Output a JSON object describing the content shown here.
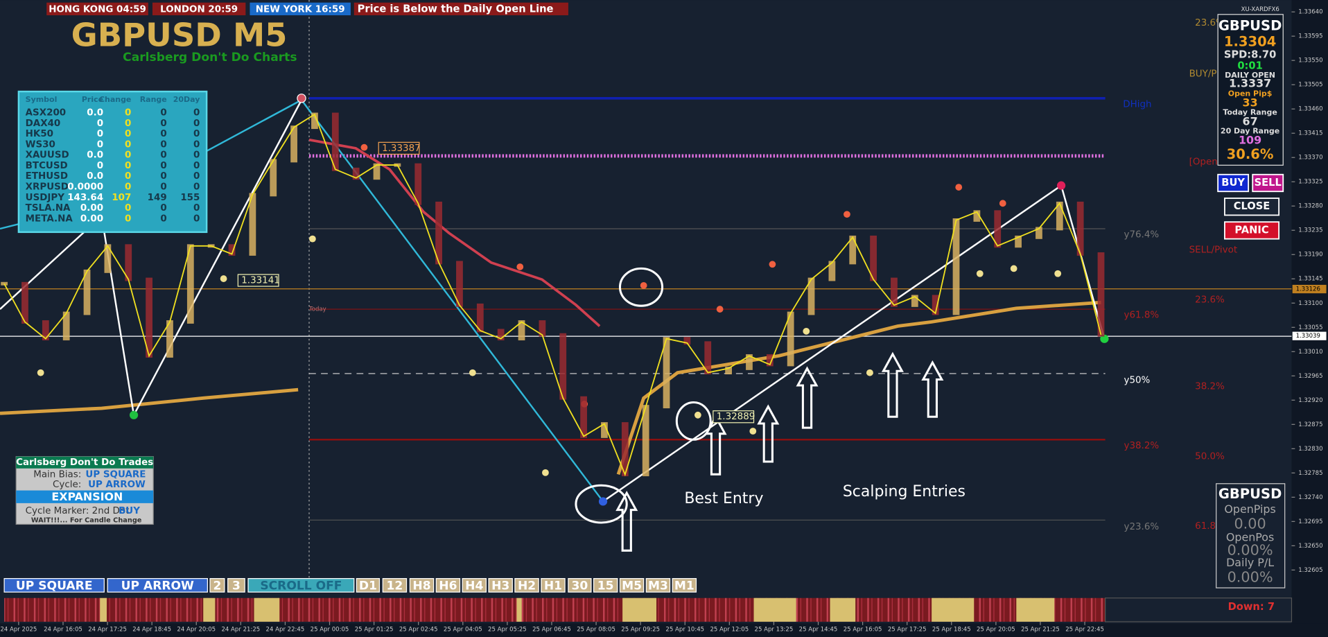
{
  "header": {
    "sessions": [
      "HONG KONG 04:59",
      "LONDON 20:59",
      "NEW YORK 16:59"
    ],
    "alert": "Price is Below the Daily Open Line"
  },
  "title": {
    "symbol": "GBPUSD M5",
    "subtitle": "Carlsberg Don't Do Charts"
  },
  "broker_label": "XU-XARDFX6",
  "symbol_table": {
    "columns": [
      "Symbol",
      "Price",
      "Change",
      "Range",
      "20Day"
    ],
    "rows": [
      [
        "ASX200",
        "0.0",
        "0",
        "0",
        "0"
      ],
      [
        "DAX40",
        "0",
        "0",
        "0",
        "0"
      ],
      [
        "HK50",
        "0",
        "0",
        "0",
        "0"
      ],
      [
        "WS30",
        "0",
        "0",
        "0",
        "0"
      ],
      [
        "XAUUSD",
        "0.0",
        "0",
        "0",
        "0"
      ],
      [
        "BTCUSD",
        "0",
        "0",
        "0",
        "0"
      ],
      [
        "ETHUSD",
        "0.0",
        "0",
        "0",
        "0"
      ],
      [
        "XRPUSD",
        "0.0000",
        "0",
        "0",
        "0"
      ],
      [
        "USDJPY",
        "143.64",
        "107",
        "149",
        "155"
      ],
      [
        "TSLA.NA",
        "0.00",
        "0",
        "0",
        "0"
      ],
      [
        "META.NA",
        "0.00",
        "0",
        "0",
        "0"
      ]
    ]
  },
  "price_axis": {
    "labels": [
      "1.33640",
      "1.33595",
      "1.33550",
      "1.33505",
      "1.33460",
      "1.33415",
      "1.33370",
      "1.33325",
      "1.33280",
      "1.33235",
      "1.33190",
      "1.33145",
      "1.33100",
      "1.33055",
      "1.33010",
      "1.32965",
      "1.32920",
      "1.32875",
      "1.32830",
      "1.32785",
      "1.32740",
      "1.32695",
      "1.32650",
      "1.32605"
    ],
    "markers": [
      "1.33126",
      "1.33039"
    ]
  },
  "time_axis": {
    "labels": [
      "24 Apr 2025",
      "24 Apr 16:05",
      "24 Apr 17:25",
      "24 Apr 18:45",
      "24 Apr 20:05",
      "24 Apr 21:25",
      "24 Apr 22:45",
      "25 Apr 00:05",
      "25 Apr 01:25",
      "25 Apr 02:45",
      "25 Apr 04:05",
      "25 Apr 05:25",
      "25 Apr 06:45",
      "25 Apr 08:05",
      "25 Apr 09:25",
      "25 Apr 10:45",
      "25 Apr 12:05",
      "25 Apr 13:25",
      "25 Apr 14:45",
      "25 Apr 16:05",
      "25 Apr 17:25",
      "25 Apr 18:45",
      "25 Apr 20:05",
      "25 Apr 21:25",
      "25 Apr 22:45"
    ]
  },
  "price_series": {
    "closes": [
      1.33136,
      1.33065,
      1.33034,
      1.33081,
      1.33159,
      1.33206,
      1.33144,
      1.33002,
      1.33065,
      1.33206,
      1.33206,
      1.33191,
      1.33301,
      1.33364,
      1.33426,
      1.3345,
      1.33348,
      1.33332,
      1.33356,
      1.33356,
      1.33285,
      1.33175,
      1.33096,
      1.33049,
      1.33034,
      1.33065,
      1.33041,
      1.32924,
      1.32853,
      1.32876,
      1.32782,
      1.32908,
      1.33034,
      1.33026,
      1.32971,
      1.32979,
      1.33002,
      1.32986,
      1.33081,
      1.33144,
      1.33175,
      1.33222,
      1.33144,
      1.33096,
      1.33112,
      1.33081,
      1.33254,
      1.33269,
      1.33206,
      1.33222,
      1.33238,
      1.33285,
      1.33191,
      1.33041
    ]
  },
  "chart_labels": {
    "swing_levels": [
      "1.33387",
      "1.33141",
      "1.32889"
    ],
    "today": "Today",
    "best_entry": "Best Entry",
    "scalping": "Scalping Entries"
  },
  "fib_labels": [
    "23.6%",
    "BUY/P",
    "DHigh",
    "[Open",
    "y76.4%",
    "SELL/Pivot",
    "23.6%",
    "y61.8%",
    "y50%",
    "38.2%",
    "y38.2%",
    "50.0%",
    "y23.6%",
    "61.8"
  ],
  "account_panel": {
    "symbol": "GBPUSD",
    "price": "1.3304",
    "spread": "SPD:8.70",
    "timer": "0:01",
    "daily_open_label": "DAILY OPEN",
    "daily_open": "1.3337",
    "open_pips_label": "Open Pip$",
    "open_pips": "33",
    "today_range_label": "Today Range",
    "today_range": "67",
    "range20_label": "20 Day Range",
    "range20": "109",
    "percent": "30.6%"
  },
  "buttons": [
    "BUY",
    "SELL",
    "CLOSE",
    "PANIC"
  ],
  "position_panel": {
    "symbol": "GBPUSD",
    "open_pips_label": "OpenPips",
    "open_pips": "0.00",
    "open_pos_label": "OpenPos",
    "open_pos": "0.00%",
    "daily_pl_label": "Daily P/L",
    "daily_pl": "0.00%"
  },
  "trade_panel": {
    "title": "Carlsberg Don't Do Trades",
    "bias_label": "Main Bias:",
    "bias": "UP SQUARE",
    "cycle_label": "Cycle:",
    "cycle": "UP ARROW",
    "state": "EXPANSION",
    "marker_label": "Cycle Marker: 2nd Dot",
    "marker": "BUY",
    "note": "WAIT!!!... For Candle Change"
  },
  "toolbar": [
    "UP SQUARE",
    "UP ARROW",
    "2",
    "3",
    "SCROLL OFF",
    "D1",
    "12",
    "H8",
    "H6",
    "H4",
    "H3",
    "H2",
    "H1",
    "30",
    "15",
    "M5",
    "M3",
    "M1"
  ],
  "footer": {
    "status": "Down: 7"
  }
}
